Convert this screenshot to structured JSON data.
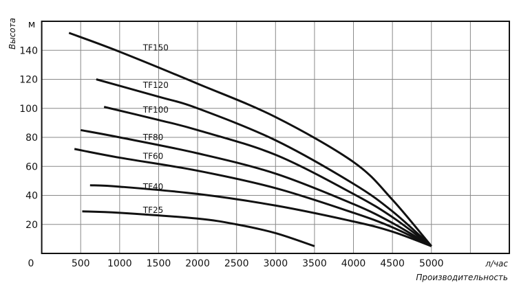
{
  "chart_data": {
    "type": "line",
    "title": "",
    "xlabel": "Производительность",
    "xunit": "л/час",
    "ylabel": "Высота",
    "yunit": "м",
    "xlim": [
      0,
      6000
    ],
    "ylim": [
      0,
      160
    ],
    "x_ticks": [
      500,
      1000,
      1500,
      2000,
      2500,
      3000,
      3500,
      4000,
      4500,
      5000
    ],
    "y_ticks": [
      20,
      40,
      60,
      80,
      100,
      120,
      140
    ],
    "origin_label": "0",
    "grid": true,
    "line_color": "#111111",
    "series": [
      {
        "name": "TF150",
        "x": [
          350,
          1000,
          2000,
          3000,
          4000,
          4500,
          5000
        ],
        "y": [
          152,
          139,
          117,
          94,
          63,
          37,
          5
        ],
        "label_at": [
          1300,
          140
        ]
      },
      {
        "name": "TF120",
        "x": [
          700,
          1500,
          2000,
          3000,
          4000,
          4500,
          5000
        ],
        "y": [
          120,
          108,
          100,
          78,
          48,
          29,
          5
        ],
        "label_at": [
          1300,
          114
        ]
      },
      {
        "name": "TF100",
        "x": [
          800,
          1500,
          2000,
          3000,
          4000,
          4500,
          5000
        ],
        "y": [
          101,
          92,
          85,
          68,
          41,
          25,
          5
        ],
        "label_at": [
          1300,
          97
        ]
      },
      {
        "name": "TF80",
        "x": [
          500,
          1000,
          2000,
          3000,
          4000,
          4500,
          5000
        ],
        "y": [
          85,
          80,
          69,
          55,
          34,
          21,
          5
        ],
        "label_at": [
          1300,
          78
        ]
      },
      {
        "name": "TF60",
        "x": [
          420,
          1000,
          2000,
          3000,
          4000,
          4500,
          5000
        ],
        "y": [
          72,
          66,
          57,
          45,
          28,
          18,
          5
        ],
        "label_at": [
          1300,
          65
        ]
      },
      {
        "name": "TF40",
        "x": [
          620,
          1000,
          2000,
          3000,
          4000,
          4500,
          5000
        ],
        "y": [
          47,
          46,
          41,
          33,
          22,
          15,
          5
        ],
        "label_at": [
          1300,
          44
        ]
      },
      {
        "name": "TF25",
        "x": [
          520,
          1000,
          2000,
          2500,
          3000,
          3500
        ],
        "y": [
          29,
          28,
          24,
          20,
          14,
          5
        ],
        "label_at": [
          1300,
          28
        ]
      }
    ]
  }
}
